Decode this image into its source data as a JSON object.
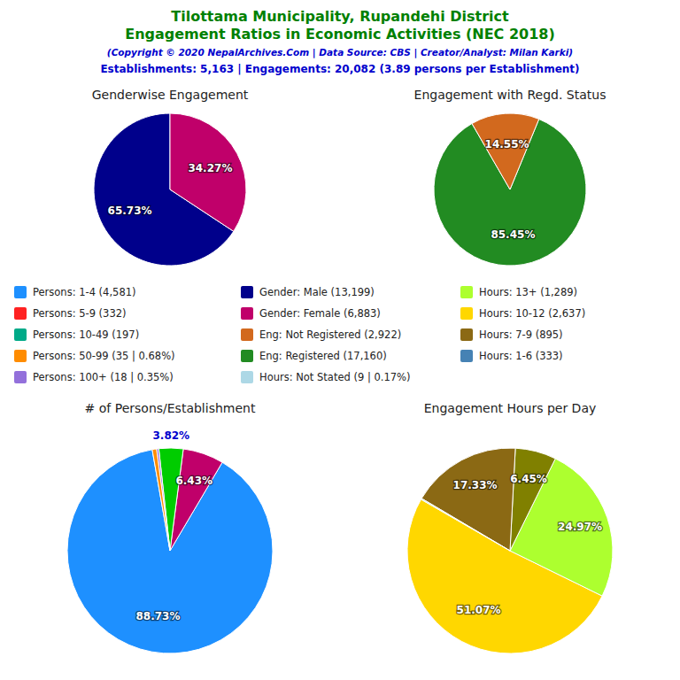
{
  "title": [
    "Tilottama Municipality, Rupandehi District",
    "Engagement Ratios in Economic Activities (NEC 2018)"
  ],
  "subtitle": [
    "(Copyright © 2020 NepalArchives.Com | Data Source: CBS | Creator/Analyst: Milan Karki)",
    "Establishments: 5,163 | Engagements: 20,082 (3.89 persons per Establishment)"
  ],
  "chart_data": [
    {
      "type": "pie",
      "title": "Genderwise Engagement",
      "values": [
        65.73,
        34.27
      ],
      "colors": [
        "#00008B",
        "#C0006A"
      ],
      "value_labels": [
        "65.73%",
        "34.27%"
      ],
      "data_labels": true
    },
    {
      "type": "pie",
      "title": "Engagement with Regd. Status",
      "values": [
        85.45,
        14.55
      ],
      "colors": [
        "#228B22",
        "#D2691E"
      ],
      "value_labels": [
        "85.45%",
        "14.55%"
      ],
      "data_labels": true
    },
    {
      "type": "pie",
      "title": "# of Persons/Establishment",
      "values": [
        88.73,
        6.43,
        3.82,
        0.35,
        0.68
      ],
      "colors": [
        "#1E90FF",
        "#C0006A",
        "#00CC00",
        "#9370DB",
        "#FF8C00"
      ],
      "value_labels": [
        "88.73%",
        "6.43%",
        "3.82%",
        null,
        null
      ],
      "data_labels": true
    },
    {
      "type": "pie",
      "title": "Engagement Hours per Day",
      "values": [
        51.07,
        24.97,
        6.45,
        17.33,
        0.17
      ],
      "colors": [
        "#FFD700",
        "#ADFF2F",
        "#808000",
        "#8B6914",
        "#ADD8E6"
      ],
      "value_labels": [
        "51.07%",
        "24.97%",
        "6.45%",
        "17.33%",
        null
      ],
      "data_labels": true
    }
  ],
  "legend_entries": [
    {
      "name": "Persons: 1-4 (4,581)",
      "color": "#1E90FF"
    },
    {
      "name": "Persons: 5-9 (332)",
      "color": "#FF2222"
    },
    {
      "name": "Persons: 10-49 (197)",
      "color": "#00AA88"
    },
    {
      "name": "Persons: 50-99 (35 | 0.68%)",
      "color": "#FF8C00"
    },
    {
      "name": "Persons: 100+ (18 | 0.35%)",
      "color": "#9370DB"
    },
    {
      "name": "Gender: Male (13,199)",
      "color": "#00008B"
    },
    {
      "name": "Gender: Female (6,883)",
      "color": "#C0006A"
    },
    {
      "name": "Eng: Not Registered (2,922)",
      "color": "#D2691E"
    },
    {
      "name": "Eng: Registered (17,160)",
      "color": "#228B22"
    },
    {
      "name": "Hours: Not Stated (9 | 0.17%)",
      "color": "#ADD8E6"
    },
    {
      "name": "Hours: 13+ (1,289)",
      "color": "#ADFF2F"
    },
    {
      "name": "Hours: 10-12 (2,637)",
      "color": "#FFD700"
    },
    {
      "name": "Hours: 7-9 (895)",
      "color": "#8B6914"
    },
    {
      "name": "Hours: 1-6 (333)",
      "color": "#4682B4"
    }
  ]
}
